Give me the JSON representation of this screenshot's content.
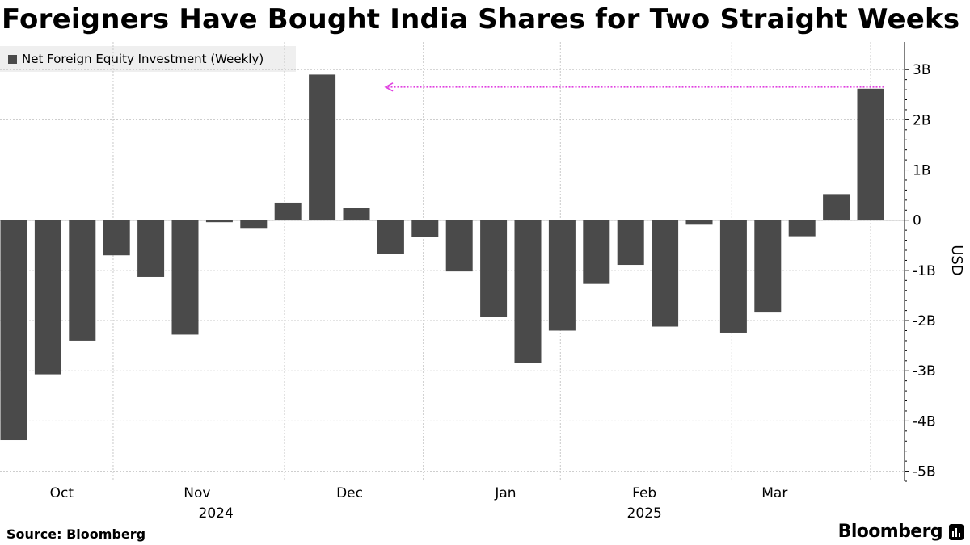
{
  "title": "Foreigners Have Bought India Shares for Two Straight Weeks",
  "source": "Source: Bloomberg",
  "brand": "Bloomberg",
  "colors": {
    "bar": "#4a4a4a",
    "annotation": "#e040e0",
    "grid": "#c8c8c8",
    "legend_bg": "#efefef"
  },
  "chart_data": {
    "type": "bar",
    "series": [
      {
        "name": "Net Foreign Equity Investment (Weekly)",
        "values": [
          -4.38,
          -3.07,
          -2.4,
          -0.7,
          -1.13,
          -2.28,
          -0.04,
          -0.17,
          0.35,
          2.9,
          0.24,
          -0.68,
          -0.33,
          -1.02,
          -1.92,
          -2.84,
          -2.2,
          -1.27,
          -0.89,
          -2.12,
          -0.09,
          -2.24,
          -1.84,
          -0.32,
          0.52,
          2.62
        ]
      }
    ],
    "ylabel": "USD",
    "ylim": [
      -5.2,
      3.55
    ],
    "yticks": [
      3,
      2,
      1,
      0,
      -1,
      -2,
      -3,
      -4,
      -5
    ],
    "ytick_labels": [
      "3B",
      "2B",
      "1B",
      "0",
      "-1B",
      "-2B",
      "-3B",
      "-4B",
      "-5B"
    ],
    "x_month_labels": [
      {
        "label": "Oct",
        "bar_pos": 1.4
      },
      {
        "label": "Nov",
        "bar_pos": 5.35
      },
      {
        "label": "Dec",
        "bar_pos": 9.8
      },
      {
        "label": "Jan",
        "bar_pos": 14.35
      },
      {
        "label": "Feb",
        "bar_pos": 18.4
      },
      {
        "label": "Mar",
        "bar_pos": 22.2
      }
    ],
    "x_year_labels": [
      {
        "label": "2024",
        "bar_pos": 5.9
      },
      {
        "label": "2025",
        "bar_pos": 18.4
      }
    ],
    "vgrid_bar_pos": [
      2.9,
      7.9,
      11.95,
      15.95,
      20.95,
      25.0
    ],
    "annotation": {
      "type": "arrow",
      "value": 2.62,
      "from_bar": 25,
      "to_bar_pos": 10.85
    },
    "grid": true,
    "legend": "top-left"
  }
}
